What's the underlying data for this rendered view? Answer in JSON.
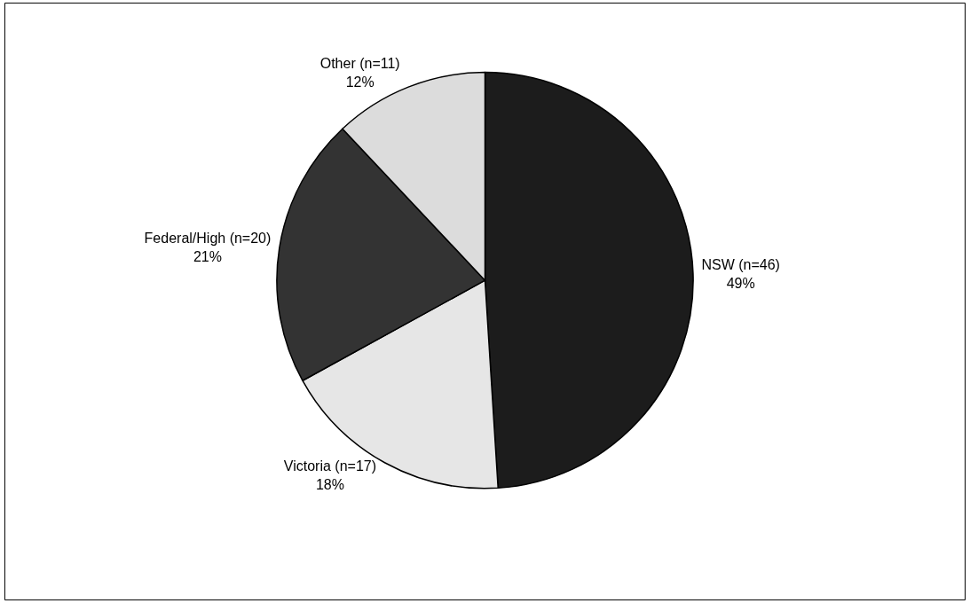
{
  "chart_data": {
    "type": "pie",
    "categories": [
      "NSW (n=46)",
      "Victoria (n=17)",
      "Federal/High (n=20)",
      "Other (n=11)"
    ],
    "values": [
      49,
      18,
      21,
      12
    ],
    "value_labels": [
      "49%",
      "18%",
      "21%",
      "12%"
    ],
    "colors": [
      "#1c1c1c",
      "#e6e6e6",
      "#333333",
      "#dcdcdc"
    ]
  }
}
